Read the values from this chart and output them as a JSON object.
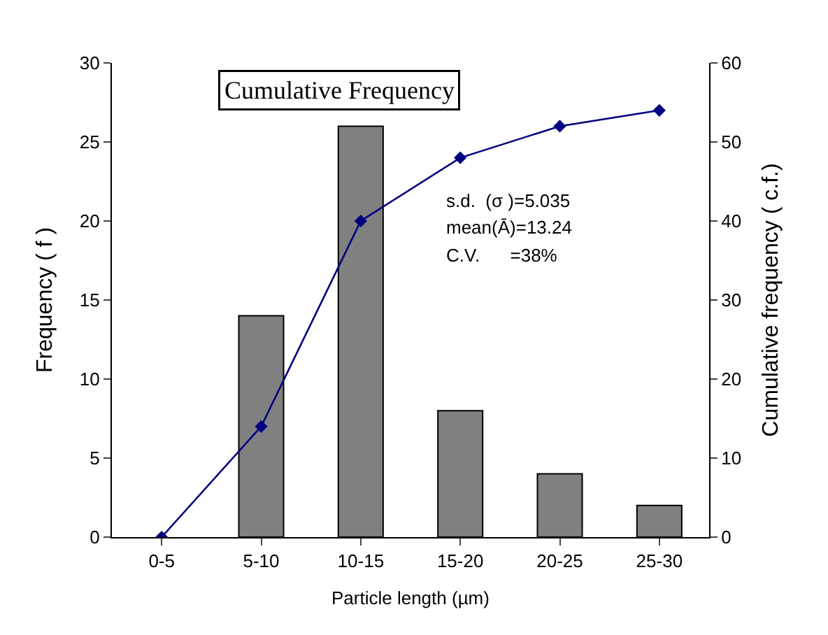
{
  "chart_data": {
    "type": "bar",
    "title": "Cumulative Frequency",
    "xlabel": "Particle length (µm)",
    "ylabel": "Frequency ( f )",
    "y2label": "Cumulative frequency ( c.f.)",
    "categories": [
      "0-5",
      "5-10",
      "10-15",
      "15-20",
      "20-25",
      "25-30"
    ],
    "series": [
      {
        "color": "#808080",
        "values": [
          0,
          14,
          26,
          8,
          4,
          2
        ]
      },
      {
        "type": "line",
        "axis": "y2",
        "color": "#000080",
        "marker": "diamond",
        "values": [
          0,
          14,
          40,
          48,
          52,
          54
        ]
      }
    ],
    "ylim": [
      0,
      30
    ],
    "yticks": [
      0,
      5,
      10,
      15,
      20,
      25,
      30
    ],
    "y2lim": [
      0,
      60
    ],
    "y2ticks": [
      0,
      10,
      20,
      30,
      40,
      50,
      60
    ],
    "annotations": [
      "s.d.  (σ )=5.035",
      "mean(Ā)=13.24",
      "C.V.      =38%"
    ]
  }
}
